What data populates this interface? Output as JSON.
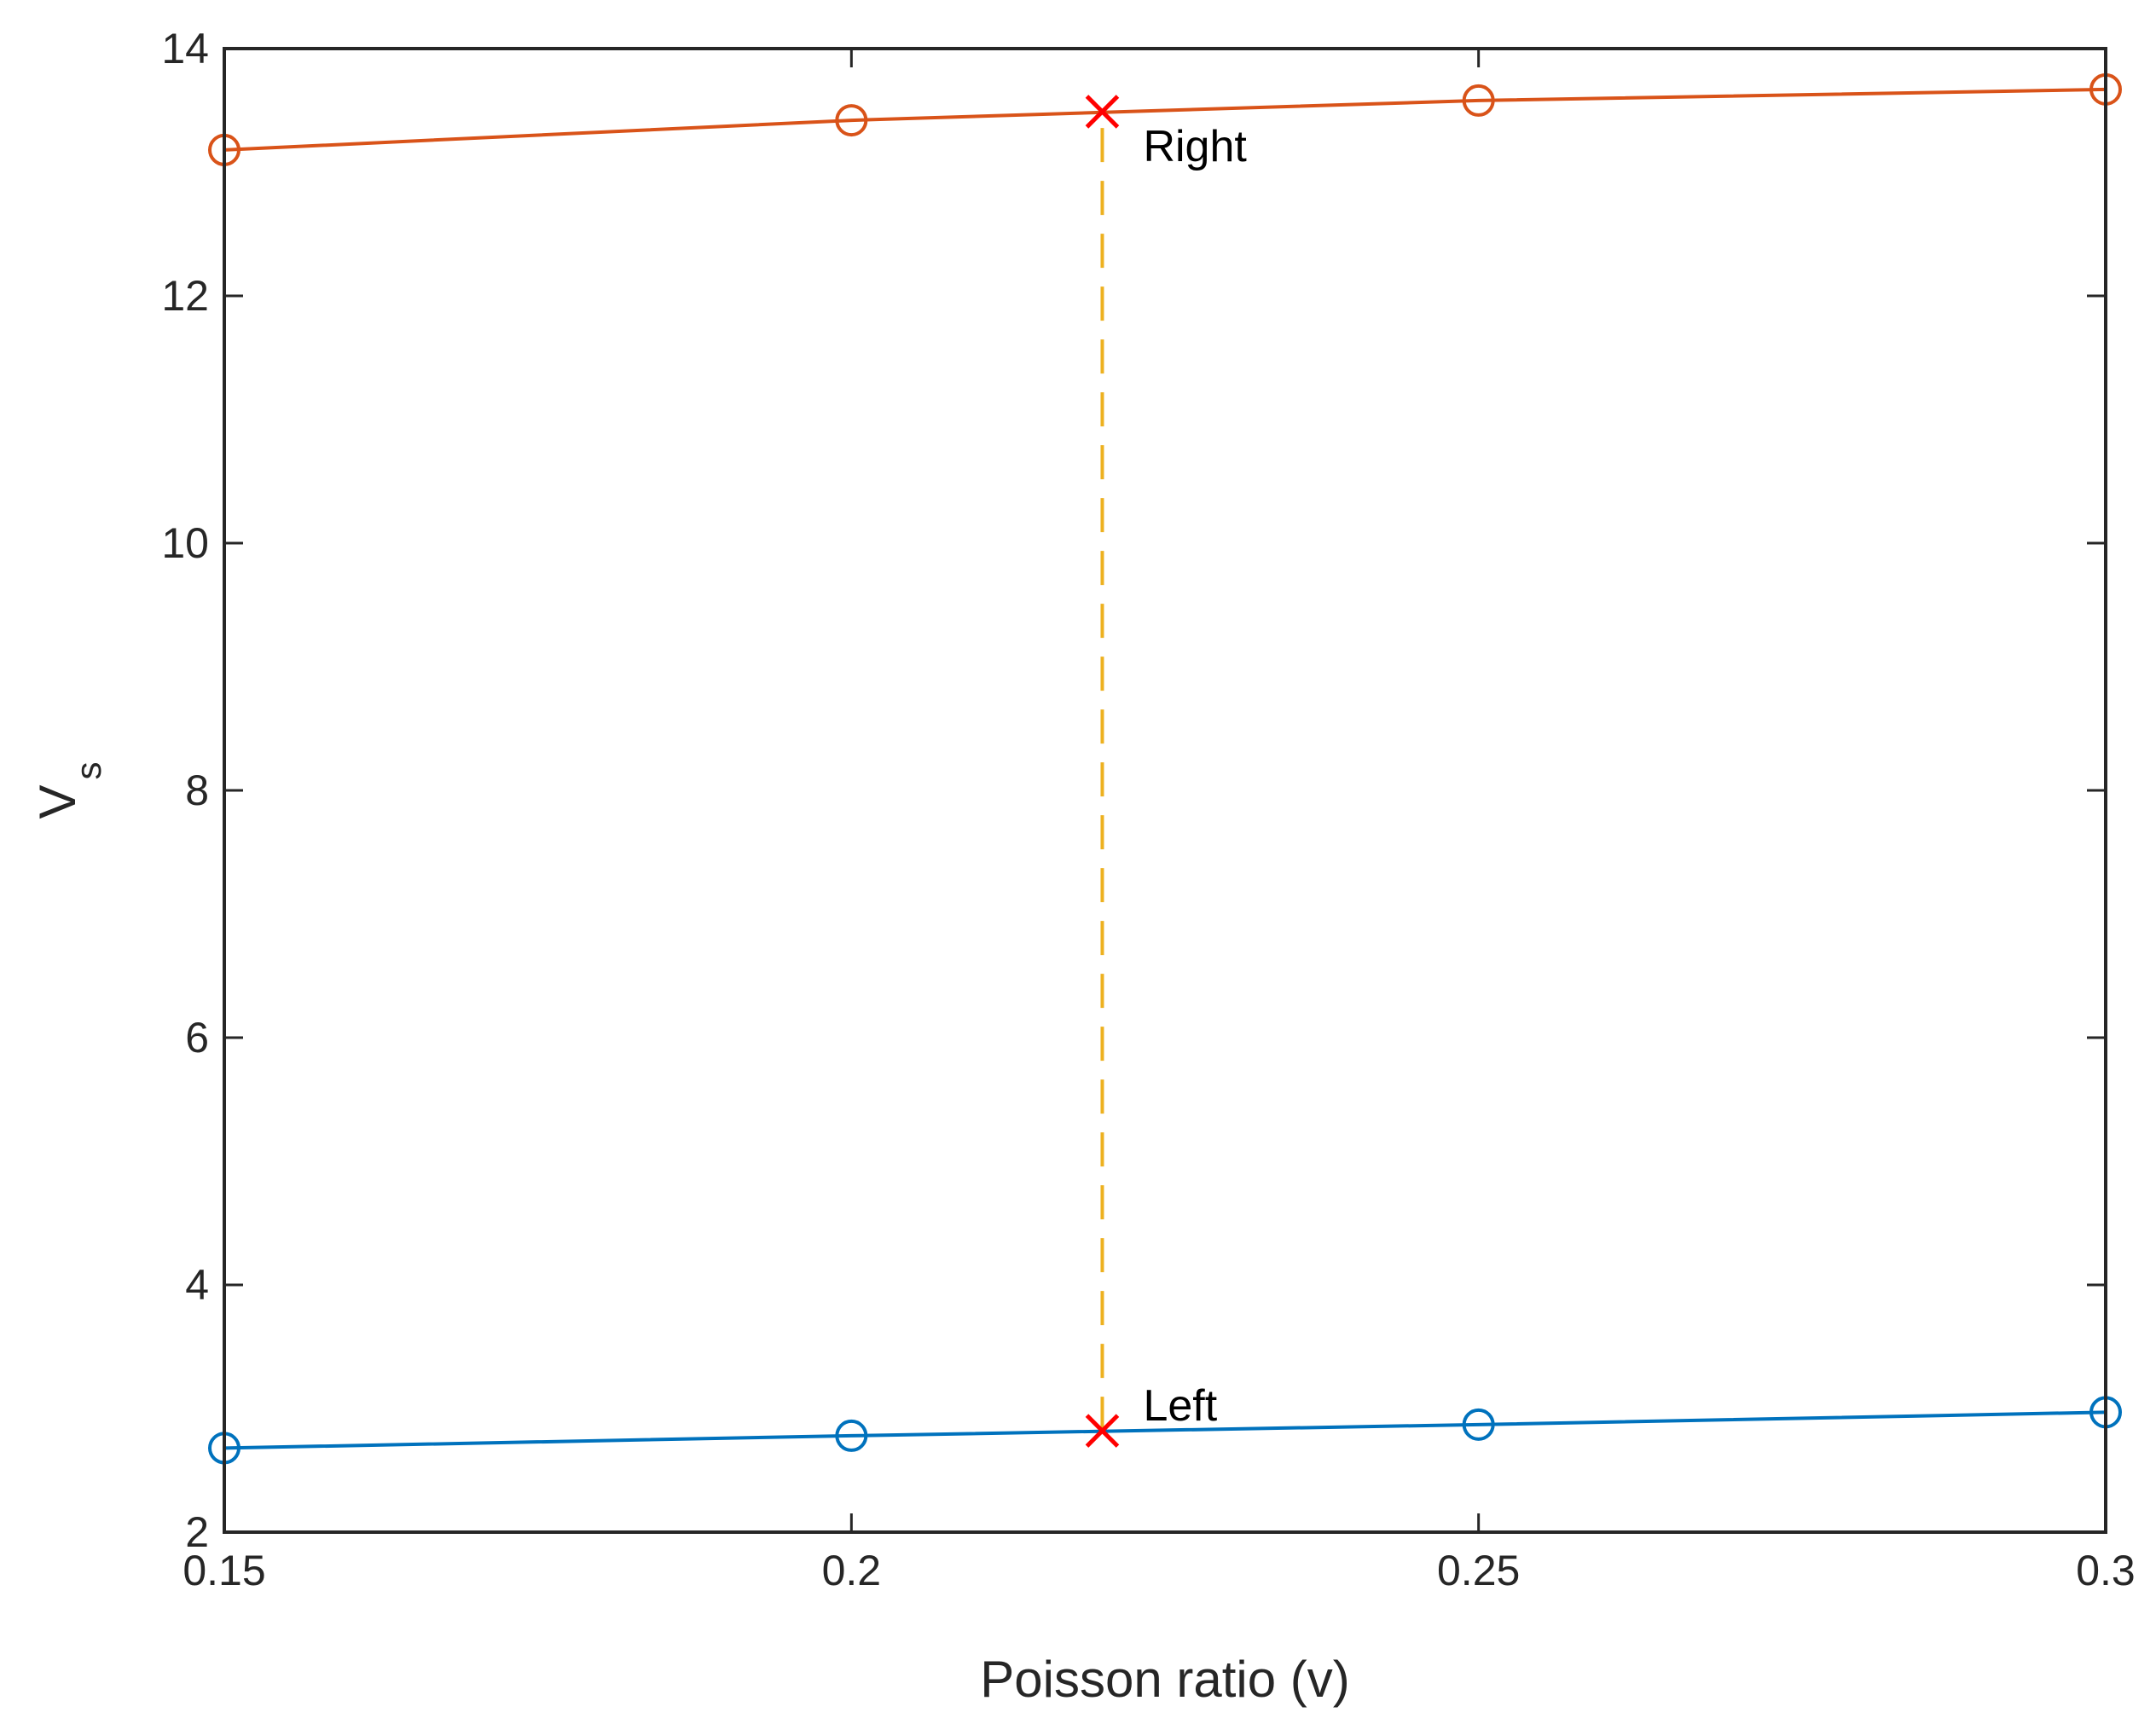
{
  "chart_data": {
    "type": "line",
    "xlabel": "Poisson ratio (v)",
    "ylabel": {
      "main": "V",
      "sub": "s"
    },
    "xlim": [
      0.15,
      0.3
    ],
    "ylim": [
      2,
      14
    ],
    "xticks": [
      0.15,
      0.2,
      0.25,
      0.3
    ],
    "xtick_labels": [
      "0.15",
      "0.2",
      "0.25",
      "0.3"
    ],
    "yticks": [
      2,
      4,
      6,
      8,
      10,
      12,
      14
    ],
    "ytick_labels": [
      "2",
      "4",
      "6",
      "8",
      "10",
      "12",
      "14"
    ],
    "grid": false,
    "series": [
      {
        "color": "#0072BD",
        "marker": "circle",
        "x": [
          0.15,
          0.2,
          0.25,
          0.3
        ],
        "y": [
          2.68,
          2.78,
          2.87,
          2.97
        ]
      },
      {
        "color": "#D95319",
        "marker": "circle",
        "x": [
          0.15,
          0.2,
          0.25,
          0.3
        ],
        "y": [
          13.18,
          13.42,
          13.58,
          13.67
        ]
      }
    ],
    "markers": [
      {
        "x": 0.22,
        "y": 2.82,
        "color": "#FF0000",
        "marker": "x"
      },
      {
        "x": 0.22,
        "y": 13.49,
        "color": "#FF0000",
        "marker": "x"
      }
    ],
    "dashed_line": {
      "x": 0.22,
      "y_from": 2.82,
      "y_to": 13.49,
      "color": "#EDB120"
    },
    "annotations": [
      {
        "text": "Left",
        "x": 0.22,
        "y": 2.82
      },
      {
        "text": "Right",
        "x": 0.22,
        "y": 13.49
      }
    ]
  }
}
